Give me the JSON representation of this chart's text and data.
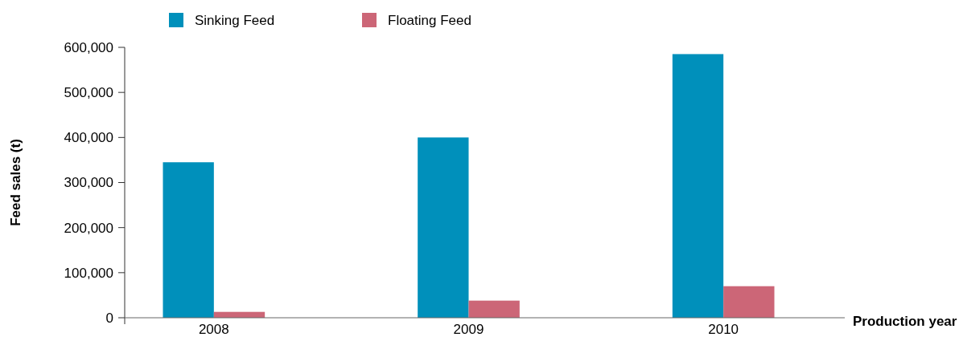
{
  "chart_data": {
    "type": "bar",
    "xlabel": "Production year",
    "ylabel": "Feed sales (t)",
    "categories": [
      "2008",
      "2009",
      "2010"
    ],
    "series": [
      {
        "name": "Sinking Feed",
        "color": "#0090bb",
        "values": [
          345000,
          400000,
          585000
        ]
      },
      {
        "name": "Floating Feed",
        "color": "#cc6677",
        "values": [
          13000,
          38000,
          70000
        ]
      }
    ],
    "ylim": [
      0,
      600000
    ],
    "yticks": [
      {
        "value": 0,
        "label": "0"
      },
      {
        "value": 100000,
        "label": "100,000"
      },
      {
        "value": 200000,
        "label": "200,000"
      },
      {
        "value": 300000,
        "label": "300,000"
      },
      {
        "value": 400000,
        "label": "400,000"
      },
      {
        "value": 500000,
        "label": "500,000"
      },
      {
        "value": 600000,
        "label": "600,000"
      }
    ],
    "legend": "top left",
    "grid": false
  }
}
